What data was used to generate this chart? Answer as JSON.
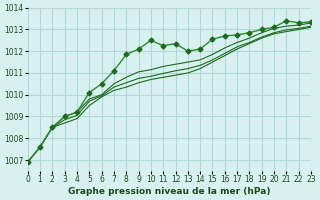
{
  "xlabel": "Graphe pression niveau de la mer (hPa)",
  "background_color": "#d8f0f0",
  "grid_color": "#b0d8d8",
  "line_color": "#1a6b1a",
  "line_color2": "#2d8b2d",
  "xlim": [
    0,
    23
  ],
  "ylim": [
    1006.5,
    1014.0
  ],
  "yticks": [
    1007,
    1008,
    1009,
    1010,
    1011,
    1012,
    1013,
    1014
  ],
  "xticks": [
    0,
    1,
    2,
    3,
    4,
    5,
    6,
    7,
    8,
    9,
    10,
    11,
    12,
    13,
    14,
    15,
    16,
    17,
    18,
    19,
    20,
    21,
    22,
    23
  ],
  "series1": [
    1006.9,
    1007.6,
    1008.5,
    1009.0,
    1009.2,
    1010.1,
    1010.5,
    1011.1,
    1011.85,
    1012.1,
    1012.5,
    1012.25,
    1012.35,
    1012.0,
    1012.1,
    1012.55,
    1012.7,
    1012.75,
    1012.85,
    1013.0,
    1013.1,
    1013.4,
    1013.3,
    1013.35
  ],
  "series2": [
    1006.9,
    1007.6,
    1008.5,
    1009.0,
    1009.2,
    1009.8,
    1010.0,
    1010.5,
    1010.8,
    1011.05,
    1011.15,
    1011.3,
    1011.4,
    1011.5,
    1011.6,
    1011.85,
    1012.15,
    1012.4,
    1012.6,
    1012.85,
    1013.05,
    1013.15,
    1013.2,
    1013.3
  ],
  "series3": [
    1006.9,
    1007.6,
    1008.5,
    1008.85,
    1009.05,
    1009.7,
    1009.95,
    1010.35,
    1010.55,
    1010.75,
    1010.85,
    1010.98,
    1011.1,
    1011.2,
    1011.35,
    1011.6,
    1011.9,
    1012.2,
    1012.4,
    1012.65,
    1012.85,
    1012.98,
    1013.05,
    1013.15
  ],
  "series4": [
    1006.9,
    1007.6,
    1008.5,
    1008.7,
    1008.9,
    1009.5,
    1009.9,
    1010.2,
    1010.35,
    1010.55,
    1010.7,
    1010.8,
    1010.9,
    1011.0,
    1011.2,
    1011.5,
    1011.8,
    1012.1,
    1012.35,
    1012.6,
    1012.8,
    1012.9,
    1013.0,
    1013.1
  ]
}
